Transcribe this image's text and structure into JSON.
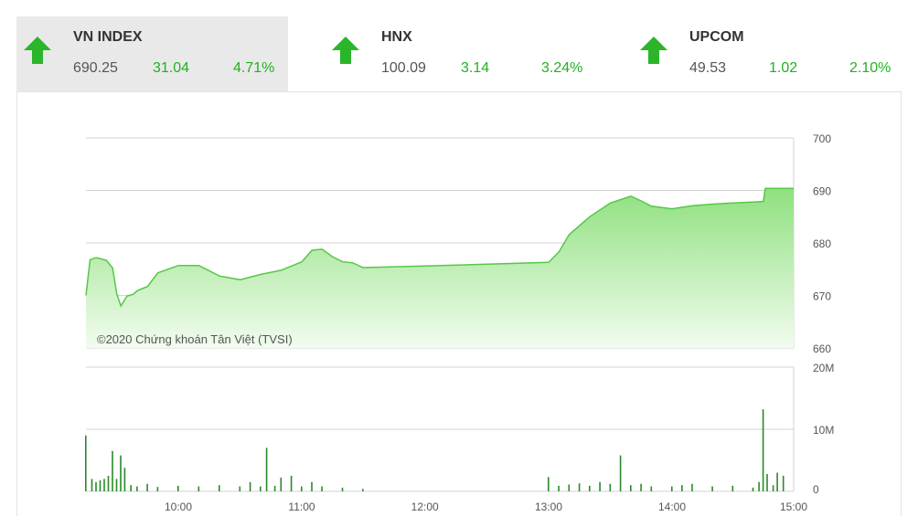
{
  "indices": [
    {
      "name": "VN INDEX",
      "value": "690.25",
      "change": "31.04",
      "percent": "4.71%",
      "direction": "up"
    },
    {
      "name": "HNX",
      "value": "100.09",
      "change": "3.14",
      "percent": "3.24%",
      "direction": "up"
    },
    {
      "name": "UPCOM",
      "value": "49.53",
      "change": "1.02",
      "percent": "2.10%",
      "direction": "up"
    }
  ],
  "colors": {
    "up": "#2bb52b",
    "area_top": "#8fe07f",
    "area_bottom": "#f2fcef",
    "line": "#55c845",
    "volume": "#2a8a2a",
    "grid": "#d3d3d3"
  },
  "watermark": "©2020 Chứng khoán Tân Việt (TVSI)",
  "chart_data": [
    {
      "type": "area",
      "xlabel": "",
      "ylabel": "",
      "ylim": [
        660,
        700
      ],
      "yticks": [
        "700",
        "690",
        "680",
        "670",
        "660"
      ],
      "xlim": [
        "09:15",
        "15:00"
      ],
      "grid": true,
      "series": [
        {
          "x": [
            "09:15",
            "09:17",
            "09:20",
            "09:25",
            "09:28",
            "09:30",
            "09:32",
            "09:35",
            "09:38",
            "09:40",
            "09:45",
            "09:50",
            "10:00",
            "10:10",
            "10:20",
            "10:30",
            "10:40",
            "10:50",
            "11:00",
            "11:05",
            "11:10",
            "11:15",
            "11:20",
            "11:25",
            "11:30",
            "12:00",
            "13:00",
            "13:05",
            "13:10",
            "13:20",
            "13:30",
            "13:40",
            "13:45",
            "13:50",
            "14:00",
            "14:10",
            "14:20",
            "14:30",
            "14:40",
            "14:45",
            "14:46",
            "14:50",
            "15:00"
          ],
          "values": [
            670.0,
            676.8,
            677.2,
            676.7,
            675.2,
            670.3,
            668.0,
            669.9,
            670.2,
            670.9,
            671.7,
            674.3,
            675.7,
            675.7,
            673.7,
            673.0,
            674.0,
            674.8,
            676.4,
            678.6,
            678.8,
            677.4,
            676.4,
            676.2,
            675.3,
            675.6,
            676.3,
            678.3,
            681.6,
            685.0,
            687.6,
            688.9,
            688.0,
            687.0,
            686.5,
            687.1,
            687.4,
            687.6,
            687.8,
            687.9,
            690.4,
            690.4,
            690.4
          ]
        }
      ]
    },
    {
      "type": "bar",
      "xlabel": "",
      "ylabel": "",
      "ylim": [
        0,
        20
      ],
      "yticks": [
        "20M",
        "10M",
        "0"
      ],
      "xticks": [
        "10:00",
        "11:00",
        "12:00",
        "13:00",
        "14:00",
        "15:00"
      ],
      "series": [
        {
          "x": [
            "09:15",
            "09:18",
            "09:20",
            "09:22",
            "09:24",
            "09:26",
            "09:28",
            "09:30",
            "09:32",
            "09:34",
            "09:37",
            "09:40",
            "09:45",
            "09:50",
            "10:00",
            "10:10",
            "10:20",
            "10:30",
            "10:35",
            "10:40",
            "10:43",
            "10:47",
            "10:50",
            "10:55",
            "11:00",
            "11:05",
            "11:10",
            "11:20",
            "11:30",
            "13:00",
            "13:05",
            "13:10",
            "13:15",
            "13:20",
            "13:25",
            "13:30",
            "13:35",
            "13:40",
            "13:45",
            "13:50",
            "14:00",
            "14:05",
            "14:10",
            "14:20",
            "14:30",
            "14:40",
            "14:43",
            "14:45",
            "14:47",
            "14:50",
            "14:52",
            "14:55"
          ],
          "values": [
            9.0,
            2.0,
            1.5,
            1.8,
            2.0,
            2.5,
            6.5,
            2.0,
            5.8,
            3.8,
            1.0,
            0.8,
            1.2,
            0.7,
            0.9,
            0.8,
            1.0,
            0.8,
            1.5,
            0.8,
            7.0,
            0.9,
            2.2,
            2.5,
            0.8,
            1.5,
            0.8,
            0.6,
            0.4,
            2.3,
            0.9,
            1.1,
            1.3,
            0.9,
            1.5,
            1.2,
            5.8,
            1.0,
            1.2,
            0.8,
            0.8,
            1.0,
            1.2,
            0.8,
            0.9,
            0.6,
            1.5,
            13.2,
            2.8,
            1.0,
            3.0,
            2.5
          ]
        }
      ]
    }
  ]
}
